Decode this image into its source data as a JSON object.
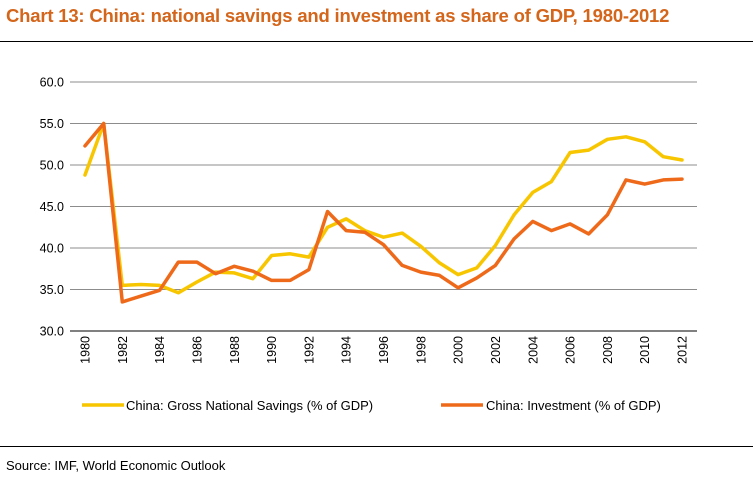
{
  "header": {
    "title": "Chart 13: China: national savings and investment as share of GDP, 1980-2012"
  },
  "footer": {
    "source": "Source: IMF, World Economic Outlook"
  },
  "colors": {
    "title": "#d4661b",
    "savings": "#f7c600",
    "investment": "#ee6a1a",
    "grid": "#8c8c8c"
  },
  "chart_data": {
    "type": "line",
    "title": "Chart 13: China: national savings and investment as share of GDP, 1980-2012",
    "xlabel": "",
    "ylabel": "",
    "x": [
      1980,
      1981,
      1982,
      1983,
      1984,
      1985,
      1986,
      1987,
      1988,
      1989,
      1990,
      1991,
      1992,
      1993,
      1994,
      1995,
      1996,
      1997,
      1998,
      1999,
      2000,
      2001,
      2002,
      2003,
      2004,
      2005,
      2006,
      2007,
      2008,
      2009,
      2010,
      2011,
      2012
    ],
    "x_tick_labels": [
      "1980",
      "1982",
      "1984",
      "1986",
      "1988",
      "1990",
      "1992",
      "1994",
      "1996",
      "1998",
      "2000",
      "2002",
      "2004",
      "2006",
      "2008",
      "2010",
      "2012"
    ],
    "y_tick_labels": [
      "30.0",
      "35.0",
      "40.0",
      "45.0",
      "50.0",
      "55.0",
      "60.0"
    ],
    "ylim": [
      30,
      60
    ],
    "grid": true,
    "legend_position": "bottom",
    "series": [
      {
        "name": "China: Gross National Savings (% of GDP)",
        "values": [
          48.8,
          55.0,
          35.5,
          35.6,
          35.5,
          34.6,
          35.9,
          37.1,
          37.0,
          36.3,
          39.1,
          39.3,
          38.9,
          42.5,
          43.5,
          42.1,
          41.3,
          41.8,
          40.2,
          38.2,
          36.8,
          37.6,
          40.3,
          44.0,
          46.7,
          48.0,
          51.5,
          51.8,
          53.1,
          53.4,
          52.8,
          51.0,
          50.6
        ]
      },
      {
        "name": "China: Investment (% of GDP)",
        "values": [
          52.3,
          55.0,
          33.5,
          34.2,
          34.9,
          38.3,
          38.3,
          36.9,
          37.8,
          37.2,
          36.1,
          36.1,
          37.4,
          44.4,
          42.1,
          41.9,
          40.4,
          37.9,
          37.1,
          36.7,
          35.2,
          36.4,
          37.9,
          41.1,
          43.2,
          42.1,
          42.9,
          41.7,
          44.0,
          48.2,
          47.7,
          48.2,
          48.3
        ]
      }
    ]
  }
}
